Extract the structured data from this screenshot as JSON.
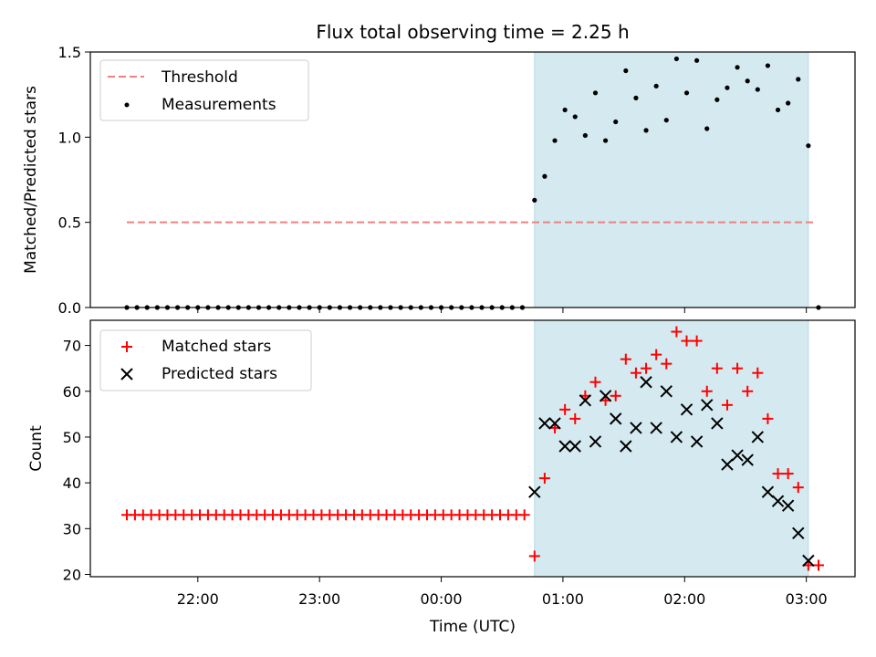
{
  "chart_data": [
    {
      "type": "scatter",
      "title": "Flux total observing time = 2.25 h",
      "ylabel": "Matched/Predicted stars",
      "xlabel": "",
      "x_unit": "time (UTC)",
      "xlim": [
        "21:07",
        "03:24"
      ],
      "ylim": [
        0,
        1.5
      ],
      "yticks": [
        "0.0",
        "0.5",
        "1.0",
        "1.5"
      ],
      "highlight_span": {
        "start": "00:46",
        "end": "03:01",
        "color": "#d4eaf0"
      },
      "legend": {
        "position": "upper-left",
        "entries": [
          "Threshold",
          "Measurements"
        ]
      },
      "threshold": {
        "name": "Threshold",
        "value": 0.5,
        "x_start": "21:25",
        "x_end": "03:05",
        "color": "#f08080",
        "style": "dashed"
      },
      "measurements": {
        "name": "Measurements",
        "color": "#000000",
        "zero_points": {
          "x_start": "21:25",
          "x_end": "00:40",
          "step_minutes": 5,
          "value": 0
        },
        "points": [
          [
            "00:46",
            0.63
          ],
          [
            "00:51",
            0.77
          ],
          [
            "00:56",
            0.98
          ],
          [
            "01:01",
            1.16
          ],
          [
            "01:06",
            1.12
          ],
          [
            "01:11",
            1.01
          ],
          [
            "01:16",
            1.26
          ],
          [
            "01:21",
            0.98
          ],
          [
            "01:26",
            1.09
          ],
          [
            "01:31",
            1.39
          ],
          [
            "01:36",
            1.23
          ],
          [
            "01:41",
            1.04
          ],
          [
            "01:46",
            1.3
          ],
          [
            "01:51",
            1.1
          ],
          [
            "01:56",
            1.46
          ],
          [
            "02:01",
            1.26
          ],
          [
            "02:06",
            1.45
          ],
          [
            "02:11",
            1.05
          ],
          [
            "02:16",
            1.22
          ],
          [
            "02:21",
            1.29
          ],
          [
            "02:26",
            1.41
          ],
          [
            "02:31",
            1.33
          ],
          [
            "02:36",
            1.28
          ],
          [
            "02:41",
            1.42
          ],
          [
            "02:46",
            1.16
          ],
          [
            "02:51",
            1.2
          ],
          [
            "02:56",
            1.34
          ],
          [
            "03:01",
            0.95
          ],
          [
            "03:06",
            0.0
          ]
        ]
      }
    },
    {
      "type": "scatter",
      "title": "",
      "ylabel": "Count",
      "xlabel": "Time (UTC)",
      "xlim": [
        "21:07",
        "03:24"
      ],
      "ylim": [
        19.5,
        75.5
      ],
      "yticks": [
        "20",
        "30",
        "40",
        "50",
        "60",
        "70"
      ],
      "xticks": [
        "22:00",
        "23:00",
        "00:00",
        "01:00",
        "02:00",
        "03:00"
      ],
      "highlight_span": {
        "start": "00:46",
        "end": "03:01",
        "color": "#d4eaf0"
      },
      "legend": {
        "position": "upper-left",
        "entries": [
          "Matched stars",
          "Predicted stars"
        ]
      },
      "series": [
        {
          "name": "Matched stars",
          "marker": "plus",
          "color": "#ff0000",
          "constant_run": {
            "x_start": "21:25",
            "x_end": "00:41",
            "step_minutes": 4,
            "value": 33
          },
          "points": [
            [
              "00:46",
              24
            ],
            [
              "00:51",
              41
            ],
            [
              "00:56",
              52
            ],
            [
              "01:01",
              56
            ],
            [
              "01:06",
              54
            ],
            [
              "01:11",
              59
            ],
            [
              "01:16",
              62
            ],
            [
              "01:21",
              58
            ],
            [
              "01:26",
              59
            ],
            [
              "01:31",
              67
            ],
            [
              "01:36",
              64
            ],
            [
              "01:41",
              65
            ],
            [
              "01:46",
              68
            ],
            [
              "01:51",
              66
            ],
            [
              "01:56",
              73
            ],
            [
              "02:01",
              71
            ],
            [
              "02:06",
              71
            ],
            [
              "02:11",
              60
            ],
            [
              "02:16",
              65
            ],
            [
              "02:21",
              57
            ],
            [
              "02:26",
              65
            ],
            [
              "02:31",
              60
            ],
            [
              "02:36",
              64
            ],
            [
              "02:41",
              54
            ],
            [
              "02:46",
              42
            ],
            [
              "02:51",
              42
            ],
            [
              "02:56",
              39
            ],
            [
              "03:01",
              22
            ],
            [
              "03:06",
              22
            ]
          ]
        },
        {
          "name": "Predicted stars",
          "marker": "x",
          "color": "#000000",
          "points": [
            [
              "00:46",
              38
            ],
            [
              "00:51",
              53
            ],
            [
              "00:56",
              53
            ],
            [
              "01:01",
              48
            ],
            [
              "01:06",
              48
            ],
            [
              "01:11",
              58
            ],
            [
              "01:16",
              49
            ],
            [
              "01:21",
              59
            ],
            [
              "01:26",
              54
            ],
            [
              "01:31",
              48
            ],
            [
              "01:36",
              52
            ],
            [
              "01:41",
              62
            ],
            [
              "01:46",
              52
            ],
            [
              "01:51",
              60
            ],
            [
              "01:56",
              50
            ],
            [
              "02:01",
              56
            ],
            [
              "02:06",
              49
            ],
            [
              "02:11",
              57
            ],
            [
              "02:16",
              53
            ],
            [
              "02:21",
              44
            ],
            [
              "02:26",
              46
            ],
            [
              "02:31",
              45
            ],
            [
              "02:36",
              50
            ],
            [
              "02:41",
              38
            ],
            [
              "02:46",
              36
            ],
            [
              "02:51",
              35
            ],
            [
              "02:56",
              29
            ],
            [
              "03:01",
              23
            ]
          ]
        }
      ]
    }
  ]
}
